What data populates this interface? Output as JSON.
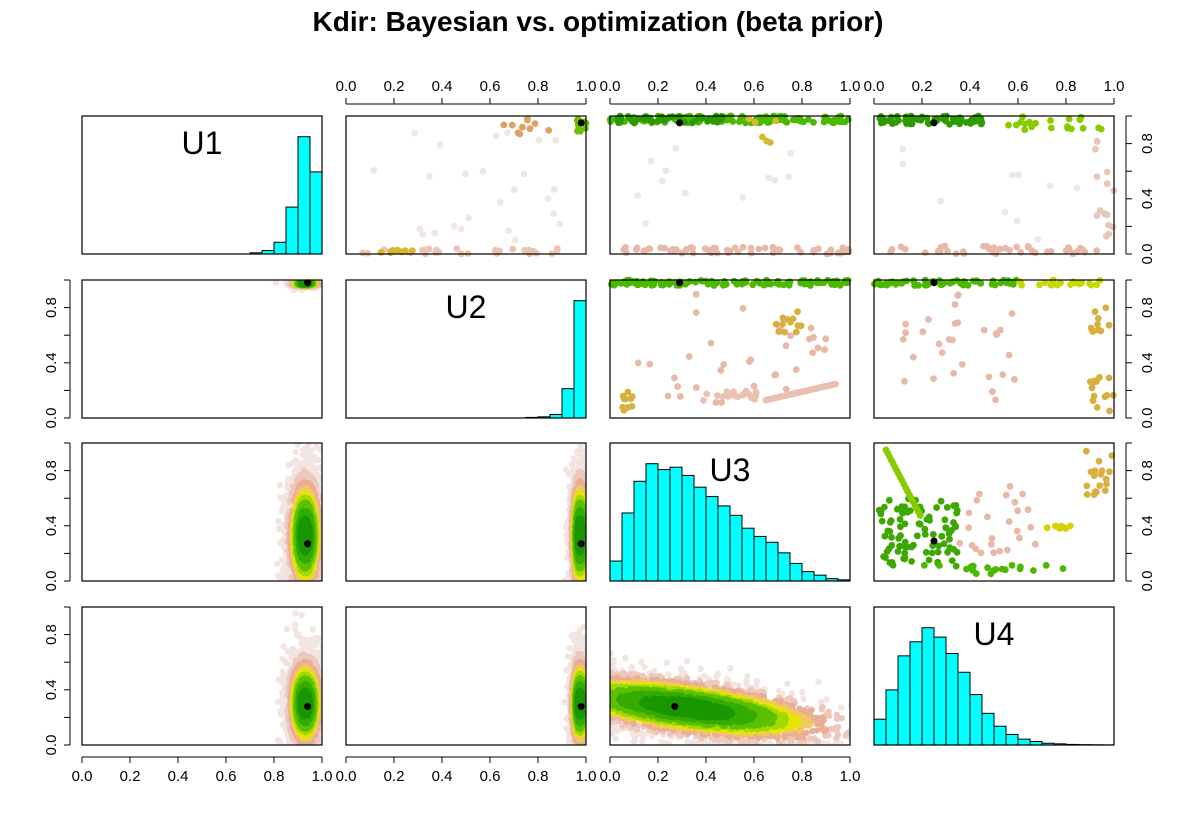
{
  "chart_data": {
    "type": "scatter",
    "title": "Kdir: Bayesian vs. optimization (beta prior)",
    "variables": [
      "U1",
      "U2",
      "U3",
      "U4"
    ],
    "axis_range": [
      0,
      1
    ],
    "ticks": [
      0.0,
      0.2,
      0.4,
      0.6,
      0.8,
      1.0
    ],
    "tick_labels": [
      "0.0",
      "0.2",
      "0.4",
      "0.6",
      "0.8",
      "1.0"
    ],
    "side_tick_labels": [
      "0.0",
      "0.4",
      "0.8"
    ],
    "colors": {
      "hist": "#00FFFF",
      "high_density": "#1E9A00",
      "mid_density": "#7FCC00",
      "yellow": "#E8E800",
      "low": "#E8B8A8",
      "faint": "#F0E6E2",
      "marker": "#000000"
    },
    "optimum": {
      "U1": 0.94,
      "U2": 0.98,
      "U3": 0.27,
      "U4": 0.28
    },
    "upper_optimum": {
      "U1": 0.95,
      "U2": 0.98,
      "U3": 0.29,
      "U4": 0.25
    },
    "histograms": {
      "U1": {
        "breaks": [
          0.7,
          0.75,
          0.8,
          0.85,
          0.9,
          0.95,
          1.0
        ],
        "counts": [
          0.01,
          0.03,
          0.1,
          0.4,
          1.0,
          0.7
        ]
      },
      "U2": {
        "breaks": [
          0.75,
          0.8,
          0.85,
          0.9,
          0.95,
          1.0
        ],
        "counts": [
          0.005,
          0.01,
          0.03,
          0.25,
          1.0
        ]
      },
      "U3": {
        "breaks": [
          0.0,
          0.05,
          0.1,
          0.15,
          0.2,
          0.25,
          0.3,
          0.35,
          0.4,
          0.45,
          0.5,
          0.55,
          0.6,
          0.65,
          0.7,
          0.75,
          0.8,
          0.85,
          0.9,
          0.95,
          1.0
        ],
        "counts": [
          0.17,
          0.58,
          0.85,
          1.0,
          0.95,
          0.97,
          0.9,
          0.8,
          0.72,
          0.64,
          0.56,
          0.45,
          0.38,
          0.33,
          0.24,
          0.15,
          0.08,
          0.05,
          0.02,
          0.01
        ]
      },
      "U4": {
        "breaks": [
          0.0,
          0.05,
          0.1,
          0.15,
          0.2,
          0.25,
          0.3,
          0.35,
          0.4,
          0.45,
          0.5,
          0.55,
          0.6,
          0.65,
          0.7,
          0.75,
          0.8,
          0.85,
          0.9,
          0.95,
          1.0
        ],
        "counts": [
          0.22,
          0.47,
          0.76,
          0.88,
          1.0,
          0.92,
          0.78,
          0.62,
          0.43,
          0.27,
          0.16,
          0.09,
          0.05,
          0.03,
          0.015,
          0.01,
          0.005,
          0.003,
          0.002,
          0.001
        ]
      }
    }
  }
}
